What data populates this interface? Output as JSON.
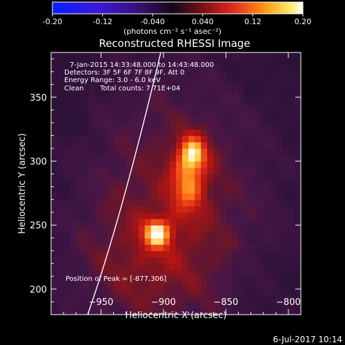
{
  "colorbar": {
    "ticks": [
      "-0.20",
      "-0.12",
      "-0.040",
      "0.040",
      "0.12",
      "0.20"
    ],
    "tick_values": [
      -0.2,
      -0.12,
      -0.04,
      0.04,
      0.12,
      0.2
    ],
    "range": [
      -0.2,
      0.2
    ],
    "units": "(photons cm⁻² s⁻¹ asec⁻²)"
  },
  "chart_data": {
    "type": "heatmap",
    "title": "Reconstructed RHESSI Image",
    "xlabel": "Heliocentric X (arcsec)",
    "ylabel": "Heliocentric Y (arcsec)",
    "xlim": [
      -990,
      -790
    ],
    "ylim": [
      180,
      385
    ],
    "x_ticks": [
      -950,
      -900,
      -850,
      -800
    ],
    "y_ticks": [
      200,
      250,
      300,
      350
    ],
    "x_tick_labels": [
      "−950",
      "−900",
      "−850",
      "−800"
    ],
    "y_tick_labels": [
      "200",
      "250",
      "300",
      "350"
    ],
    "colormap": "black-purple-red-orange-yellow-white",
    "peak": [
      -877,
      306
    ],
    "sources": [
      {
        "x": -877,
        "y": 306,
        "intensity": 0.2
      },
      {
        "x": -880,
        "y": 280,
        "intensity": 0.17
      },
      {
        "x": -905,
        "y": 244,
        "intensity": 0.18
      }
    ]
  },
  "annotations": {
    "time_range": "7-Jan-2015 14:33:48.000 to 14:43:48.000",
    "detectors": "Detectors: 3F 5F 6F 7F 8F 9F, Att 0",
    "energy": "Energy Range: 3.0 - 6.0 keV",
    "method": "Clean",
    "counts": "Total counts: 7.71E+04",
    "peak_label": "Position of Peak = [-877,306]"
  },
  "footer": {
    "date": "6-Jul-2017 10:14"
  },
  "colors": {
    "background": "#000000",
    "axes": "#ffffff",
    "limb": "#ffffff"
  }
}
